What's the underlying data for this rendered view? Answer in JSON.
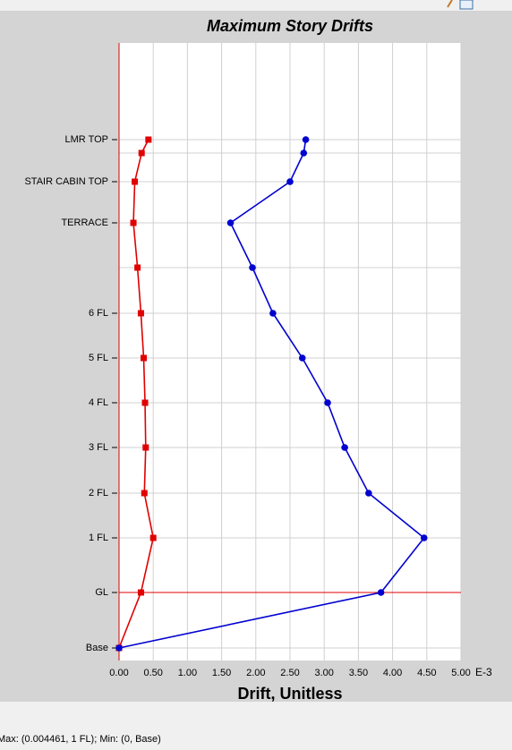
{
  "chart_data": {
    "type": "line",
    "orientation": "horizontal",
    "title": "Maximum Story Drifts",
    "xlabel": "Drift, Unitless",
    "x_unit": "E-3",
    "categories": [
      "Base",
      "GL",
      "1 FL",
      "2 FL",
      "3 FL",
      "4 FL",
      "5 FL",
      "6 FL",
      null,
      "TERRACE",
      "STAIR CABIN TOP",
      null,
      "LMR TOP"
    ],
    "series": [
      {
        "color": "#e00000",
        "marker": "square",
        "values": [
          0,
          0.32,
          0.5,
          0.37,
          0.39,
          0.38,
          0.36,
          0.32,
          0.27,
          0.21,
          0.23,
          0.33,
          0.43
        ]
      },
      {
        "color": "#0000d0",
        "marker": "circle",
        "values": [
          0,
          3.83,
          4.46,
          3.65,
          3.3,
          3.05,
          2.68,
          2.25,
          1.95,
          1.63,
          2.5,
          2.7,
          2.73
        ]
      }
    ],
    "xlim": [
      0,
      5
    ],
    "xticks": [
      {
        "value": 0,
        "label": "0.00"
      },
      {
        "value": 0.5,
        "label": "0.50"
      },
      {
        "value": 1,
        "label": "1.00"
      },
      {
        "value": 1.5,
        "label": "1.50"
      },
      {
        "value": 2,
        "label": "2.00"
      },
      {
        "value": 2.5,
        "label": "2.50"
      },
      {
        "value": 3,
        "label": "3.00"
      },
      {
        "value": 3.5,
        "label": "3.50"
      },
      {
        "value": 4,
        "label": "4.00"
      },
      {
        "value": 4.5,
        "label": "4.50"
      },
      {
        "value": 5,
        "label": "5.00"
      }
    ],
    "grid": true
  },
  "status_bar": "Max: (0.004461, 1 FL);   Min: (0, Base)"
}
